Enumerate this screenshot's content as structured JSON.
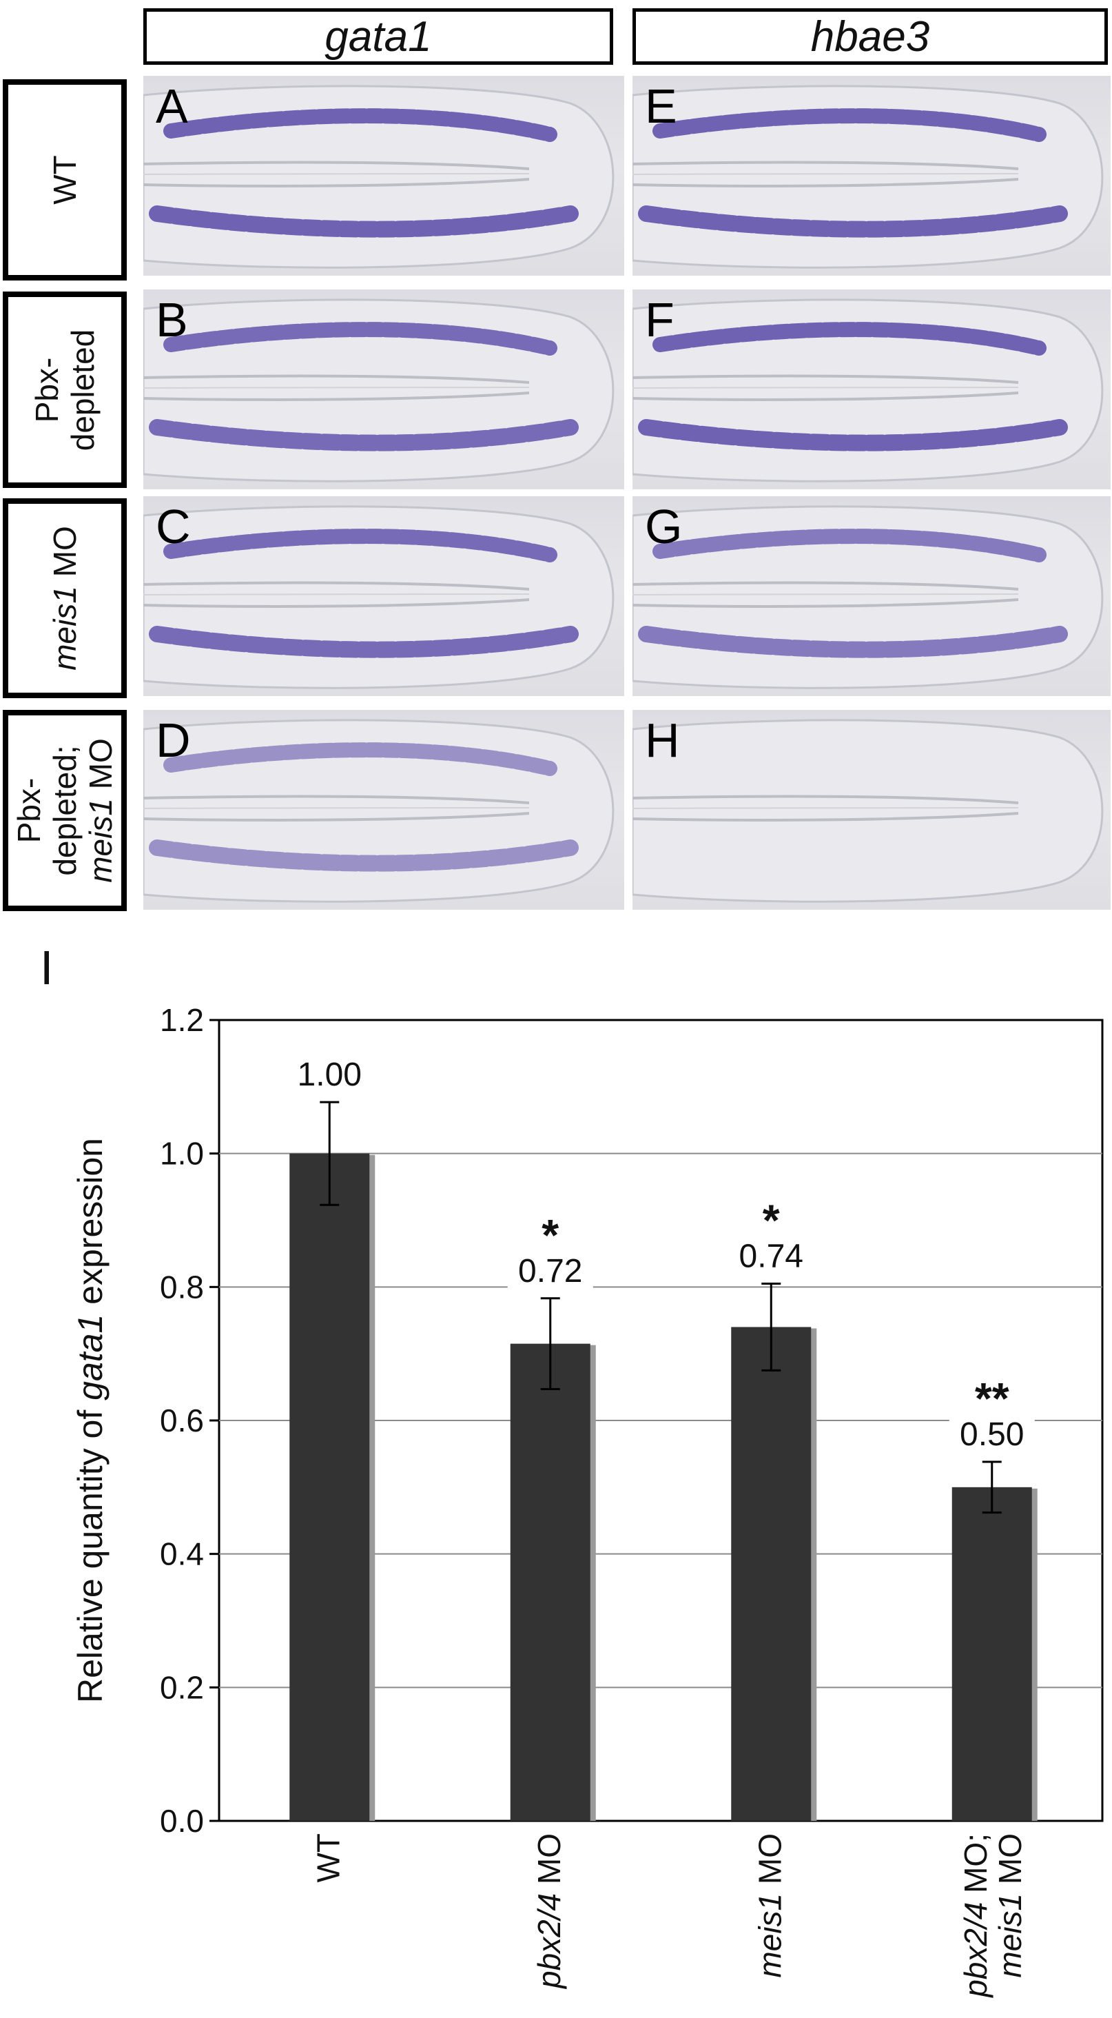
{
  "columns": [
    {
      "label": "gata1"
    },
    {
      "label": "hbae3"
    }
  ],
  "rows": [
    {
      "lines": [
        {
          "text": "WT",
          "italic": ""
        }
      ]
    },
    {
      "lines": [
        {
          "text": "Pbx-",
          "italic": ""
        },
        {
          "text": "depleted",
          "italic": ""
        }
      ]
    },
    {
      "lines": [
        {
          "text": " MO",
          "italic": "meis1"
        }
      ]
    },
    {
      "lines": [
        {
          "text": "Pbx-",
          "italic": ""
        },
        {
          "text": "depleted;",
          "italic": ""
        },
        {
          "text": " MO",
          "italic": "meis1"
        }
      ]
    }
  ],
  "panels": [
    {
      "letter": "A",
      "intensity": 0.85
    },
    {
      "letter": "E",
      "intensity": 0.85
    },
    {
      "letter": "B",
      "intensity": 0.8
    },
    {
      "letter": "F",
      "intensity": 0.85
    },
    {
      "letter": "C",
      "intensity": 0.8
    },
    {
      "letter": "G",
      "intensity": 0.7
    },
    {
      "letter": "D",
      "intensity": 0.55
    },
    {
      "letter": "H",
      "intensity": 0.0
    }
  ],
  "stain_color": "#5a4aa8",
  "chart_label": "I",
  "chart_data": {
    "type": "bar",
    "categories": [
      {
        "italic": "",
        "text": "WT",
        "line2_italic": "",
        "line2_text": ""
      },
      {
        "italic": "pbx2/4",
        "text": " MO",
        "line2_italic": "",
        "line2_text": ""
      },
      {
        "italic": "meis1",
        "text": " MO",
        "line2_italic": "",
        "line2_text": ""
      },
      {
        "italic": "pbx2/4",
        "text": " MO;",
        "line2_italic": "meis1",
        "line2_text": " MO"
      }
    ],
    "values": [
      1.0,
      0.715,
      0.74,
      0.5
    ],
    "errors": [
      0.077,
      0.068,
      0.065,
      0.038
    ],
    "data_labels": [
      "1.00",
      "0.72",
      "0.74",
      "0.50"
    ],
    "significance": [
      "",
      "*",
      "*",
      "**"
    ],
    "ylabel_prefix": "Relative quantity of ",
    "ylabel_italic": "gata1",
    "ylabel_suffix": " expression",
    "ylim": [
      0,
      1.2
    ],
    "yticks": [
      "0.0",
      "0.2",
      "0.4",
      "0.6",
      "0.8",
      "1.0",
      "1.2"
    ],
    "grid": true,
    "bar_color": "#333333",
    "bar_shadow_color": "#9a9a9a"
  }
}
